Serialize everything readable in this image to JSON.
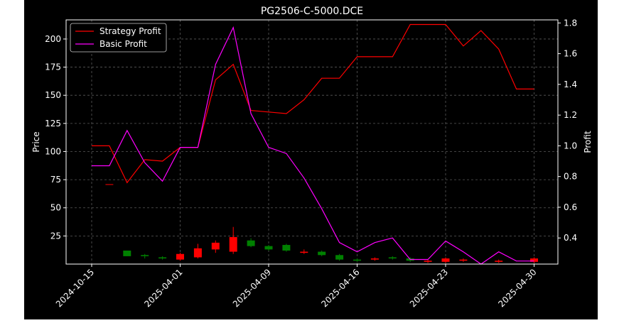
{
  "chart_data": {
    "type": "candlestick+line",
    "title": "PG2506-C-5000.DCE",
    "ylabel_left": "Price",
    "ylabel_right": "Profit",
    "ylim_left": [
      0,
      217
    ],
    "ylim_right": [
      0.23,
      1.82
    ],
    "left_ticks": [
      25,
      50,
      75,
      100,
      125,
      150,
      175,
      200
    ],
    "right_ticks": [
      0.4,
      0.6,
      0.8,
      1.0,
      1.2,
      1.4,
      1.6,
      1.8
    ],
    "x_tick_indices": [
      0,
      5,
      10,
      15,
      20,
      25
    ],
    "x_tick_labels": [
      "2024-10-15",
      "2025-04-01",
      "2025-04-09",
      "2025-04-16",
      "2025-04-23",
      "2025-04-30"
    ],
    "grid": true,
    "legend_position": "upper-left",
    "colors": {
      "background": "#000000",
      "figure": "#ffffff",
      "up": "#ff0000",
      "down": "#008000",
      "strategy": "#ff0000",
      "basic": "#ff00ff",
      "text": "#ffffff",
      "grid": "#555555"
    },
    "candles": [
      {
        "i": 1,
        "open": 71,
        "close": 71,
        "high": 71,
        "low": 71
      },
      {
        "i": 2,
        "open": 12,
        "close": 7,
        "high": 12,
        "low": 7
      },
      {
        "i": 3,
        "open": 8,
        "close": 7,
        "high": 9,
        "low": 5
      },
      {
        "i": 4,
        "open": 6,
        "close": 5,
        "high": 7,
        "low": 4
      },
      {
        "i": 5,
        "open": 4,
        "close": 9,
        "high": 10,
        "low": 3
      },
      {
        "i": 6,
        "open": 6,
        "close": 14,
        "high": 18,
        "low": 5
      },
      {
        "i": 7,
        "open": 13,
        "close": 19,
        "high": 21,
        "low": 10
      },
      {
        "i": 8,
        "open": 11,
        "close": 24,
        "high": 33,
        "low": 9
      },
      {
        "i": 9,
        "open": 21,
        "close": 16,
        "high": 23,
        "low": 15
      },
      {
        "i": 10,
        "open": 16,
        "close": 13,
        "high": 17,
        "low": 12
      },
      {
        "i": 11,
        "open": 17,
        "close": 12,
        "high": 18,
        "low": 11
      },
      {
        "i": 12,
        "open": 10,
        "close": 11,
        "high": 13,
        "low": 9
      },
      {
        "i": 13,
        "open": 11,
        "close": 8,
        "high": 12,
        "low": 7
      },
      {
        "i": 14,
        "open": 8,
        "close": 4,
        "high": 9,
        "low": 3
      },
      {
        "i": 15,
        "open": 4,
        "close": 3,
        "high": 5,
        "low": 2
      },
      {
        "i": 16,
        "open": 4,
        "close": 5,
        "high": 6,
        "low": 3
      },
      {
        "i": 17,
        "open": 6,
        "close": 5,
        "high": 7,
        "low": 4
      },
      {
        "i": 18,
        "open": 5,
        "close": 3,
        "high": 6,
        "low": 2
      },
      {
        "i": 19,
        "open": 2,
        "close": 3,
        "high": 4,
        "low": 1
      },
      {
        "i": 20,
        "open": 2,
        "close": 5,
        "high": 6,
        "low": 1
      },
      {
        "i": 21,
        "open": 3,
        "close": 4,
        "high": 5,
        "low": 2
      },
      {
        "i": 23,
        "open": 2,
        "close": 3,
        "high": 4,
        "low": 1
      },
      {
        "i": 25,
        "open": 2,
        "close": 5,
        "high": 6,
        "low": 1
      }
    ],
    "series": [
      {
        "name": "Strategy Profit",
        "values": [
          1.0,
          1.0,
          0.76,
          0.91,
          0.9,
          0.99,
          0.99,
          1.43,
          1.53,
          1.23,
          1.22,
          1.21,
          1.3,
          1.44,
          1.44,
          1.58,
          1.58,
          1.58,
          1.79,
          1.79,
          1.79,
          1.65,
          1.75,
          1.63,
          1.37,
          1.37
        ]
      },
      {
        "name": "Basic Profit",
        "values": [
          0.87,
          0.87,
          1.1,
          0.89,
          0.77,
          0.99,
          0.99,
          1.53,
          1.77,
          1.21,
          0.99,
          0.95,
          0.79,
          0.59,
          0.37,
          0.31,
          0.37,
          0.4,
          0.26,
          0.26,
          0.38,
          0.31,
          0.23,
          0.31,
          0.25,
          0.25
        ]
      }
    ]
  }
}
